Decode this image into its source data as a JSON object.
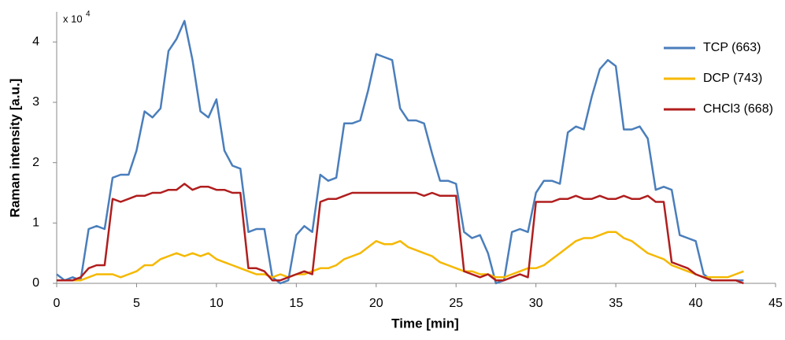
{
  "chart_data": {
    "type": "line",
    "x_label": "Time [min]",
    "y_label": "Raman intensity [a.u.]",
    "y_unit": {
      "text": "x 10",
      "exponent": "4"
    },
    "x": [
      0,
      0.5,
      1,
      1.5,
      2,
      2.5,
      3,
      3.5,
      4,
      4.5,
      5,
      5.5,
      6,
      6.5,
      7,
      7.5,
      8,
      8.5,
      9,
      9.5,
      10,
      10.5,
      11,
      11.5,
      12,
      12.5,
      13,
      13.5,
      14,
      14.5,
      15,
      15.5,
      16,
      16.5,
      17,
      17.5,
      18,
      18.5,
      19,
      19.5,
      20,
      20.5,
      21,
      21.5,
      22,
      22.5,
      23,
      23.5,
      24,
      24.5,
      25,
      25.5,
      26,
      26.5,
      27,
      27.5,
      28,
      28.5,
      29,
      29.5,
      30,
      30.5,
      31,
      31.5,
      32,
      32.5,
      33,
      33.5,
      34,
      34.5,
      35,
      35.5,
      36,
      36.5,
      37,
      37.5,
      38,
      38.5,
      39,
      39.5,
      40,
      40.5,
      41,
      41.5,
      42,
      42.5,
      43
    ],
    "series": [
      {
        "name": "TCP (663)",
        "color": "#4a7ebb",
        "values": [
          0.15,
          0.05,
          0.1,
          0.05,
          0.9,
          0.95,
          0.9,
          1.75,
          1.8,
          1.8,
          2.2,
          2.85,
          2.75,
          2.9,
          3.85,
          4.05,
          4.35,
          3.7,
          2.85,
          2.75,
          3.05,
          2.2,
          1.95,
          1.9,
          0.85,
          0.9,
          0.9,
          0.1,
          0.0,
          0.05,
          0.8,
          0.95,
          0.85,
          1.8,
          1.7,
          1.75,
          2.65,
          2.65,
          2.7,
          3.2,
          3.8,
          3.75,
          3.7,
          2.9,
          2.7,
          2.7,
          2.65,
          2.15,
          1.7,
          1.7,
          1.65,
          0.85,
          0.75,
          0.8,
          0.5,
          0.0,
          0.05,
          0.85,
          0.9,
          0.85,
          1.5,
          1.7,
          1.7,
          1.65,
          2.5,
          2.6,
          2.55,
          3.1,
          3.55,
          3.7,
          3.6,
          2.55,
          2.55,
          2.6,
          2.4,
          1.55,
          1.6,
          1.55,
          0.8,
          0.75,
          0.7,
          0.15,
          0.05,
          0.05,
          0.05,
          0.05,
          0.05
        ]
      },
      {
        "name": "DCP (743)",
        "color": "#f5b800",
        "values": [
          0.05,
          0.05,
          0.05,
          0.05,
          0.1,
          0.15,
          0.15,
          0.15,
          0.1,
          0.15,
          0.2,
          0.3,
          0.3,
          0.4,
          0.45,
          0.5,
          0.45,
          0.5,
          0.45,
          0.5,
          0.4,
          0.35,
          0.3,
          0.25,
          0.2,
          0.15,
          0.15,
          0.1,
          0.15,
          0.1,
          0.15,
          0.15,
          0.2,
          0.25,
          0.25,
          0.3,
          0.4,
          0.45,
          0.5,
          0.6,
          0.7,
          0.65,
          0.65,
          0.7,
          0.6,
          0.55,
          0.5,
          0.45,
          0.35,
          0.3,
          0.25,
          0.2,
          0.2,
          0.15,
          0.15,
          0.1,
          0.1,
          0.15,
          0.2,
          0.25,
          0.25,
          0.3,
          0.4,
          0.5,
          0.6,
          0.7,
          0.75,
          0.75,
          0.8,
          0.85,
          0.85,
          0.75,
          0.7,
          0.6,
          0.5,
          0.45,
          0.4,
          0.3,
          0.25,
          0.2,
          0.15,
          0.1,
          0.1,
          0.1,
          0.1,
          0.15,
          0.2
        ]
      },
      {
        "name": "CHCl3 (668)",
        "color": "#b01e1e",
        "values": [
          0.05,
          0.05,
          0.05,
          0.1,
          0.25,
          0.3,
          0.3,
          1.4,
          1.35,
          1.4,
          1.45,
          1.45,
          1.5,
          1.5,
          1.55,
          1.55,
          1.65,
          1.55,
          1.6,
          1.6,
          1.55,
          1.55,
          1.5,
          1.5,
          0.25,
          0.25,
          0.2,
          0.05,
          0.05,
          0.1,
          0.15,
          0.2,
          0.15,
          1.35,
          1.4,
          1.4,
          1.45,
          1.5,
          1.5,
          1.5,
          1.5,
          1.5,
          1.5,
          1.5,
          1.5,
          1.5,
          1.45,
          1.5,
          1.45,
          1.45,
          1.45,
          0.2,
          0.15,
          0.1,
          0.15,
          0.05,
          0.05,
          0.1,
          0.15,
          0.1,
          1.35,
          1.35,
          1.35,
          1.4,
          1.4,
          1.45,
          1.4,
          1.4,
          1.45,
          1.4,
          1.4,
          1.45,
          1.4,
          1.4,
          1.45,
          1.35,
          1.35,
          0.35,
          0.3,
          0.25,
          0.15,
          0.1,
          0.05,
          0.05,
          0.05,
          0.05,
          0.0
        ]
      }
    ],
    "xlim": [
      0,
      45
    ],
    "xticks": [
      0,
      5,
      10,
      15,
      20,
      25,
      30,
      35,
      40,
      45
    ],
    "ylim": [
      0,
      4.5
    ],
    "yticks": [
      0,
      1,
      2,
      3,
      4
    ],
    "grid": false,
    "legend": "right"
  }
}
